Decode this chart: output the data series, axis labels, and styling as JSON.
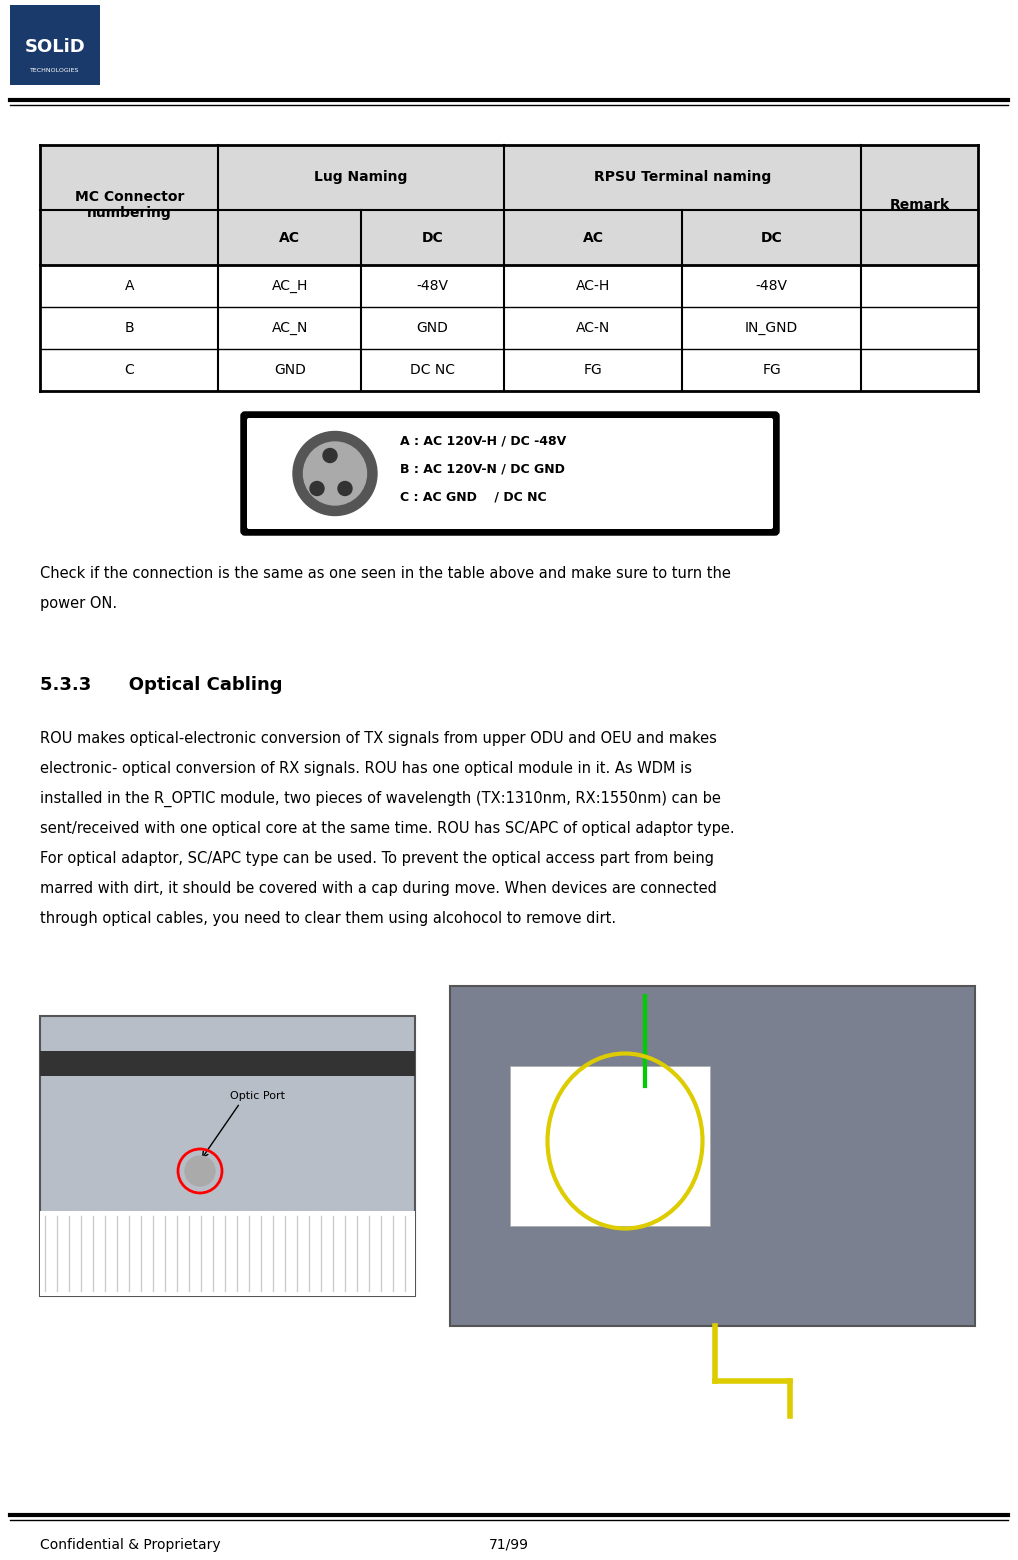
{
  "page_width": 10.18,
  "page_height": 15.6,
  "background_color": "#ffffff",
  "logo_color": "#1a3a6b",
  "footer_left": "Confidential & Proprietary",
  "footer_right": "71/99",
  "footer_fontsize": 10,
  "table_header_bg": "#d9d9d9",
  "table_header_fontsize": 10,
  "table_data_fontsize": 10,
  "table_border_color": "#000000",
  "table_data": [
    [
      "A",
      "AC_H",
      "-48V",
      "AC-H",
      "-48V",
      ""
    ],
    [
      "B",
      "AC_N",
      "GND",
      "AC-N",
      "IN_GND",
      ""
    ],
    [
      "C",
      "GND",
      "DC NC",
      "FG",
      "FG",
      ""
    ]
  ],
  "section_title": "5.3.3      Optical Cabling",
  "section_title_fontsize": 13,
  "body_text_1_lines": [
    "Check if the connection is the same as one seen in the table above and make sure to turn the",
    "power ON."
  ],
  "body_text_2_lines": [
    "ROU makes optical-electronic conversion of TX signals from upper ODU and OEU and makes",
    "electronic- optical conversion of RX signals. ROU has one optical module in it. As WDM is",
    "installed in the R_OPTIC module, two pieces of wavelength (TX:1310nm, RX:1550nm) can be",
    "sent/received with one optical core at the same time. ROU has SC/APC of optical adaptor type.",
    "For optical adaptor, SC/APC type can be used. To prevent the optical access part from being",
    "marred with dirt, it should be covered with a cap during move. When devices are connected",
    "through optical cables, you need to clear them using alcohocol to remove dirt."
  ],
  "body_fontsize": 10.5,
  "body_text_color": "#000000",
  "connector_text": [
    "A : AC 120V-H / DC -48V",
    "B : AC 120V-N / DC GND",
    "C : AC GND    / DC NC"
  ]
}
